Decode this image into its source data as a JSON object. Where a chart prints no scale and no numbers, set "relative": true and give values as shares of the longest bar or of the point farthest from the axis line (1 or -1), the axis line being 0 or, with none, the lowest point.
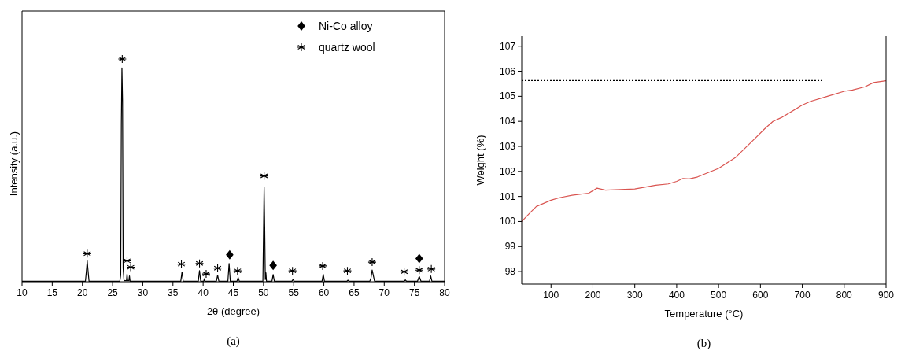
{
  "chart_data": [
    {
      "type": "line",
      "relative": true,
      "xlabel": "2θ (degree)",
      "ylabel": "Intensity (a.u.)",
      "xlim": [
        10,
        80
      ],
      "xticks": [
        10,
        15,
        20,
        25,
        30,
        35,
        40,
        45,
        50,
        55,
        60,
        65,
        70,
        75,
        80
      ],
      "legend": "top right",
      "annotations": [
        "(a)"
      ],
      "series": [
        {
          "color": "#000000",
          "x": [
            10,
            20.5,
            20.7,
            20.8,
            20.9,
            21.1,
            26.2,
            26.35,
            26.45,
            26.55,
            26.65,
            26.75,
            26.9,
            27.3,
            27.4,
            27.5,
            27.7,
            27.8,
            27.9,
            36.3,
            36.5,
            36.7,
            39.2,
            39.4,
            39.6,
            40.1,
            40.2,
            40.3,
            42.2,
            42.4,
            42.6,
            44.1,
            44.3,
            44.5,
            45.6,
            45.8,
            46.0,
            49.9,
            50.1,
            50.2,
            50.3,
            50.4,
            50.5,
            51.4,
            51.6,
            51.8,
            54.7,
            54.9,
            55.1,
            59.7,
            59.9,
            60.1,
            63.8,
            64.0,
            64.2,
            67.6,
            67.8,
            68.0,
            68.1,
            68.4,
            73.3,
            73.5,
            73.7,
            75.5,
            75.8,
            76.1,
            77.5,
            77.7,
            77.9,
            80
          ],
          "values": [
            0.002,
            0.002,
            0.06,
            0.094,
            0.06,
            0.002,
            0.002,
            0.03,
            0.71,
            0.96,
            0.81,
            0.06,
            0.005,
            0.005,
            0.035,
            0.005,
            0.005,
            0.026,
            0.002,
            0.002,
            0.044,
            0.002,
            0.002,
            0.05,
            0.002,
            0.002,
            0.014,
            0.002,
            0.002,
            0.03,
            0.002,
            0.002,
            0.082,
            0.002,
            0.002,
            0.019,
            0.002,
            0.002,
            0.424,
            0.24,
            0.01,
            0.04,
            0.002,
            0.002,
            0.032,
            0.002,
            0.002,
            0.01,
            0.002,
            0.002,
            0.033,
            0.002,
            0.002,
            0.007,
            0.002,
            0.002,
            0.015,
            0.053,
            0.04,
            0.002,
            0.002,
            0.008,
            0.002,
            0.002,
            0.024,
            0.002,
            0.002,
            0.026,
            0.002,
            0.002
          ]
        },
        {
          "type": "scatter",
          "name": "Ni-Co alloy",
          "color": "#000000",
          "marker": "diamond",
          "x": [
            44.4,
            51.6,
            75.8
          ],
          "values": [
            0.121,
            0.073,
            0.104
          ]
        },
        {
          "type": "scatter",
          "name": "quartz wool",
          "color": "#000000",
          "marker": "cross",
          "x": [
            20.8,
            26.6,
            27.4,
            28.0,
            36.4,
            39.4,
            40.5,
            42.4,
            45.7,
            50.1,
            54.8,
            59.8,
            63.9,
            68.0,
            73.3,
            75.8,
            77.8
          ],
          "values": [
            0.126,
            1.0,
            0.094,
            0.065,
            0.079,
            0.082,
            0.035,
            0.061,
            0.049,
            0.475,
            0.049,
            0.071,
            0.049,
            0.088,
            0.045,
            0.052,
            0.057
          ]
        }
      ]
    },
    {
      "type": "line",
      "xlabel": "Temperature (°C)",
      "ylabel": "Weight (%)",
      "xlim": [
        30,
        900
      ],
      "xticks": [
        100,
        200,
        300,
        400,
        500,
        600,
        700,
        800,
        900
      ],
      "ylim": [
        97.5,
        107.4
      ],
      "yticks": [
        98,
        99,
        100,
        101,
        102,
        103,
        104,
        105,
        106,
        107
      ],
      "annotations": [
        "(b)"
      ],
      "series": [
        {
          "color": "#d9534f",
          "x": [
            30,
            50,
            65,
            100,
            120,
            150,
            190,
            210,
            230,
            300,
            350,
            380,
            400,
            415,
            430,
            450,
            500,
            540,
            580,
            610,
            630,
            650,
            700,
            720,
            760,
            800,
            820,
            850,
            870,
            900
          ],
          "values": [
            100.0,
            100.35,
            100.6,
            100.85,
            100.95,
            101.05,
            101.13,
            101.33,
            101.25,
            101.3,
            101.45,
            101.5,
            101.6,
            101.72,
            101.7,
            101.78,
            102.12,
            102.55,
            103.2,
            103.7,
            104.0,
            104.15,
            104.65,
            104.8,
            105.0,
            105.2,
            105.25,
            105.38,
            105.55,
            105.62
          ]
        },
        {
          "color": "#000000",
          "line_style": "dotted",
          "x": [
            30,
            750
          ],
          "values": [
            105.63,
            105.63
          ]
        }
      ]
    }
  ]
}
